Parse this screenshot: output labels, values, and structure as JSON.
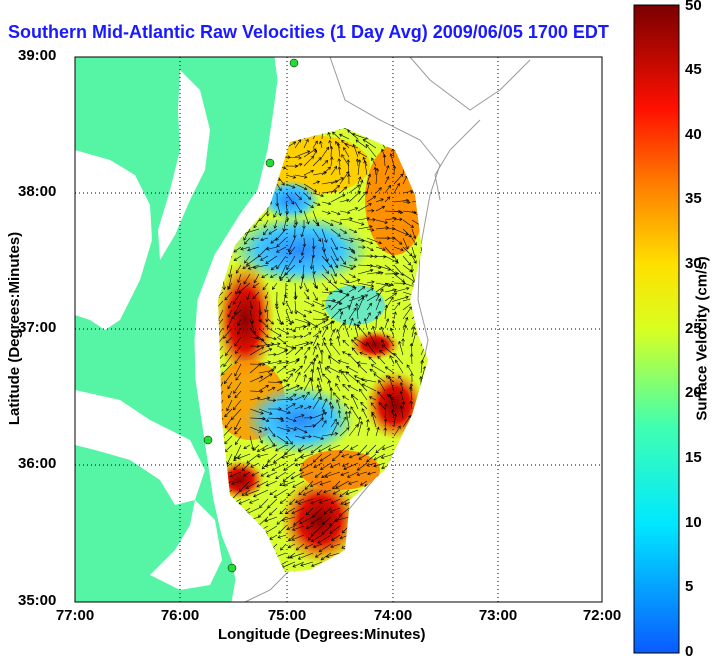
{
  "title": "Southern Mid-Atlantic Raw Velocities (1 Day Avg) 2009/06/05 1700 EDT",
  "xlabel": "Longitude (Degrees:Minutes)",
  "ylabel": "Latitude (Degrees:Minutes)",
  "colorbar": {
    "label": "Surface Velocity (cm/s)",
    "ticks": [
      "0",
      "5",
      "10",
      "15",
      "20",
      "25",
      "30",
      "35",
      "40",
      "45",
      "50"
    ],
    "range": [
      0,
      50
    ]
  },
  "axes": {
    "x_ticks": [
      "77:00",
      "76:00",
      "75:00",
      "74:00",
      "73:00",
      "72:00"
    ],
    "y_ticks": [
      "39:00",
      "38:00",
      "37:00",
      "36:00",
      "35:00"
    ],
    "grid": "dotted"
  },
  "colors": {
    "land": "#55f5a5",
    "title": "#1a1aff",
    "station": "#22dd33"
  }
}
